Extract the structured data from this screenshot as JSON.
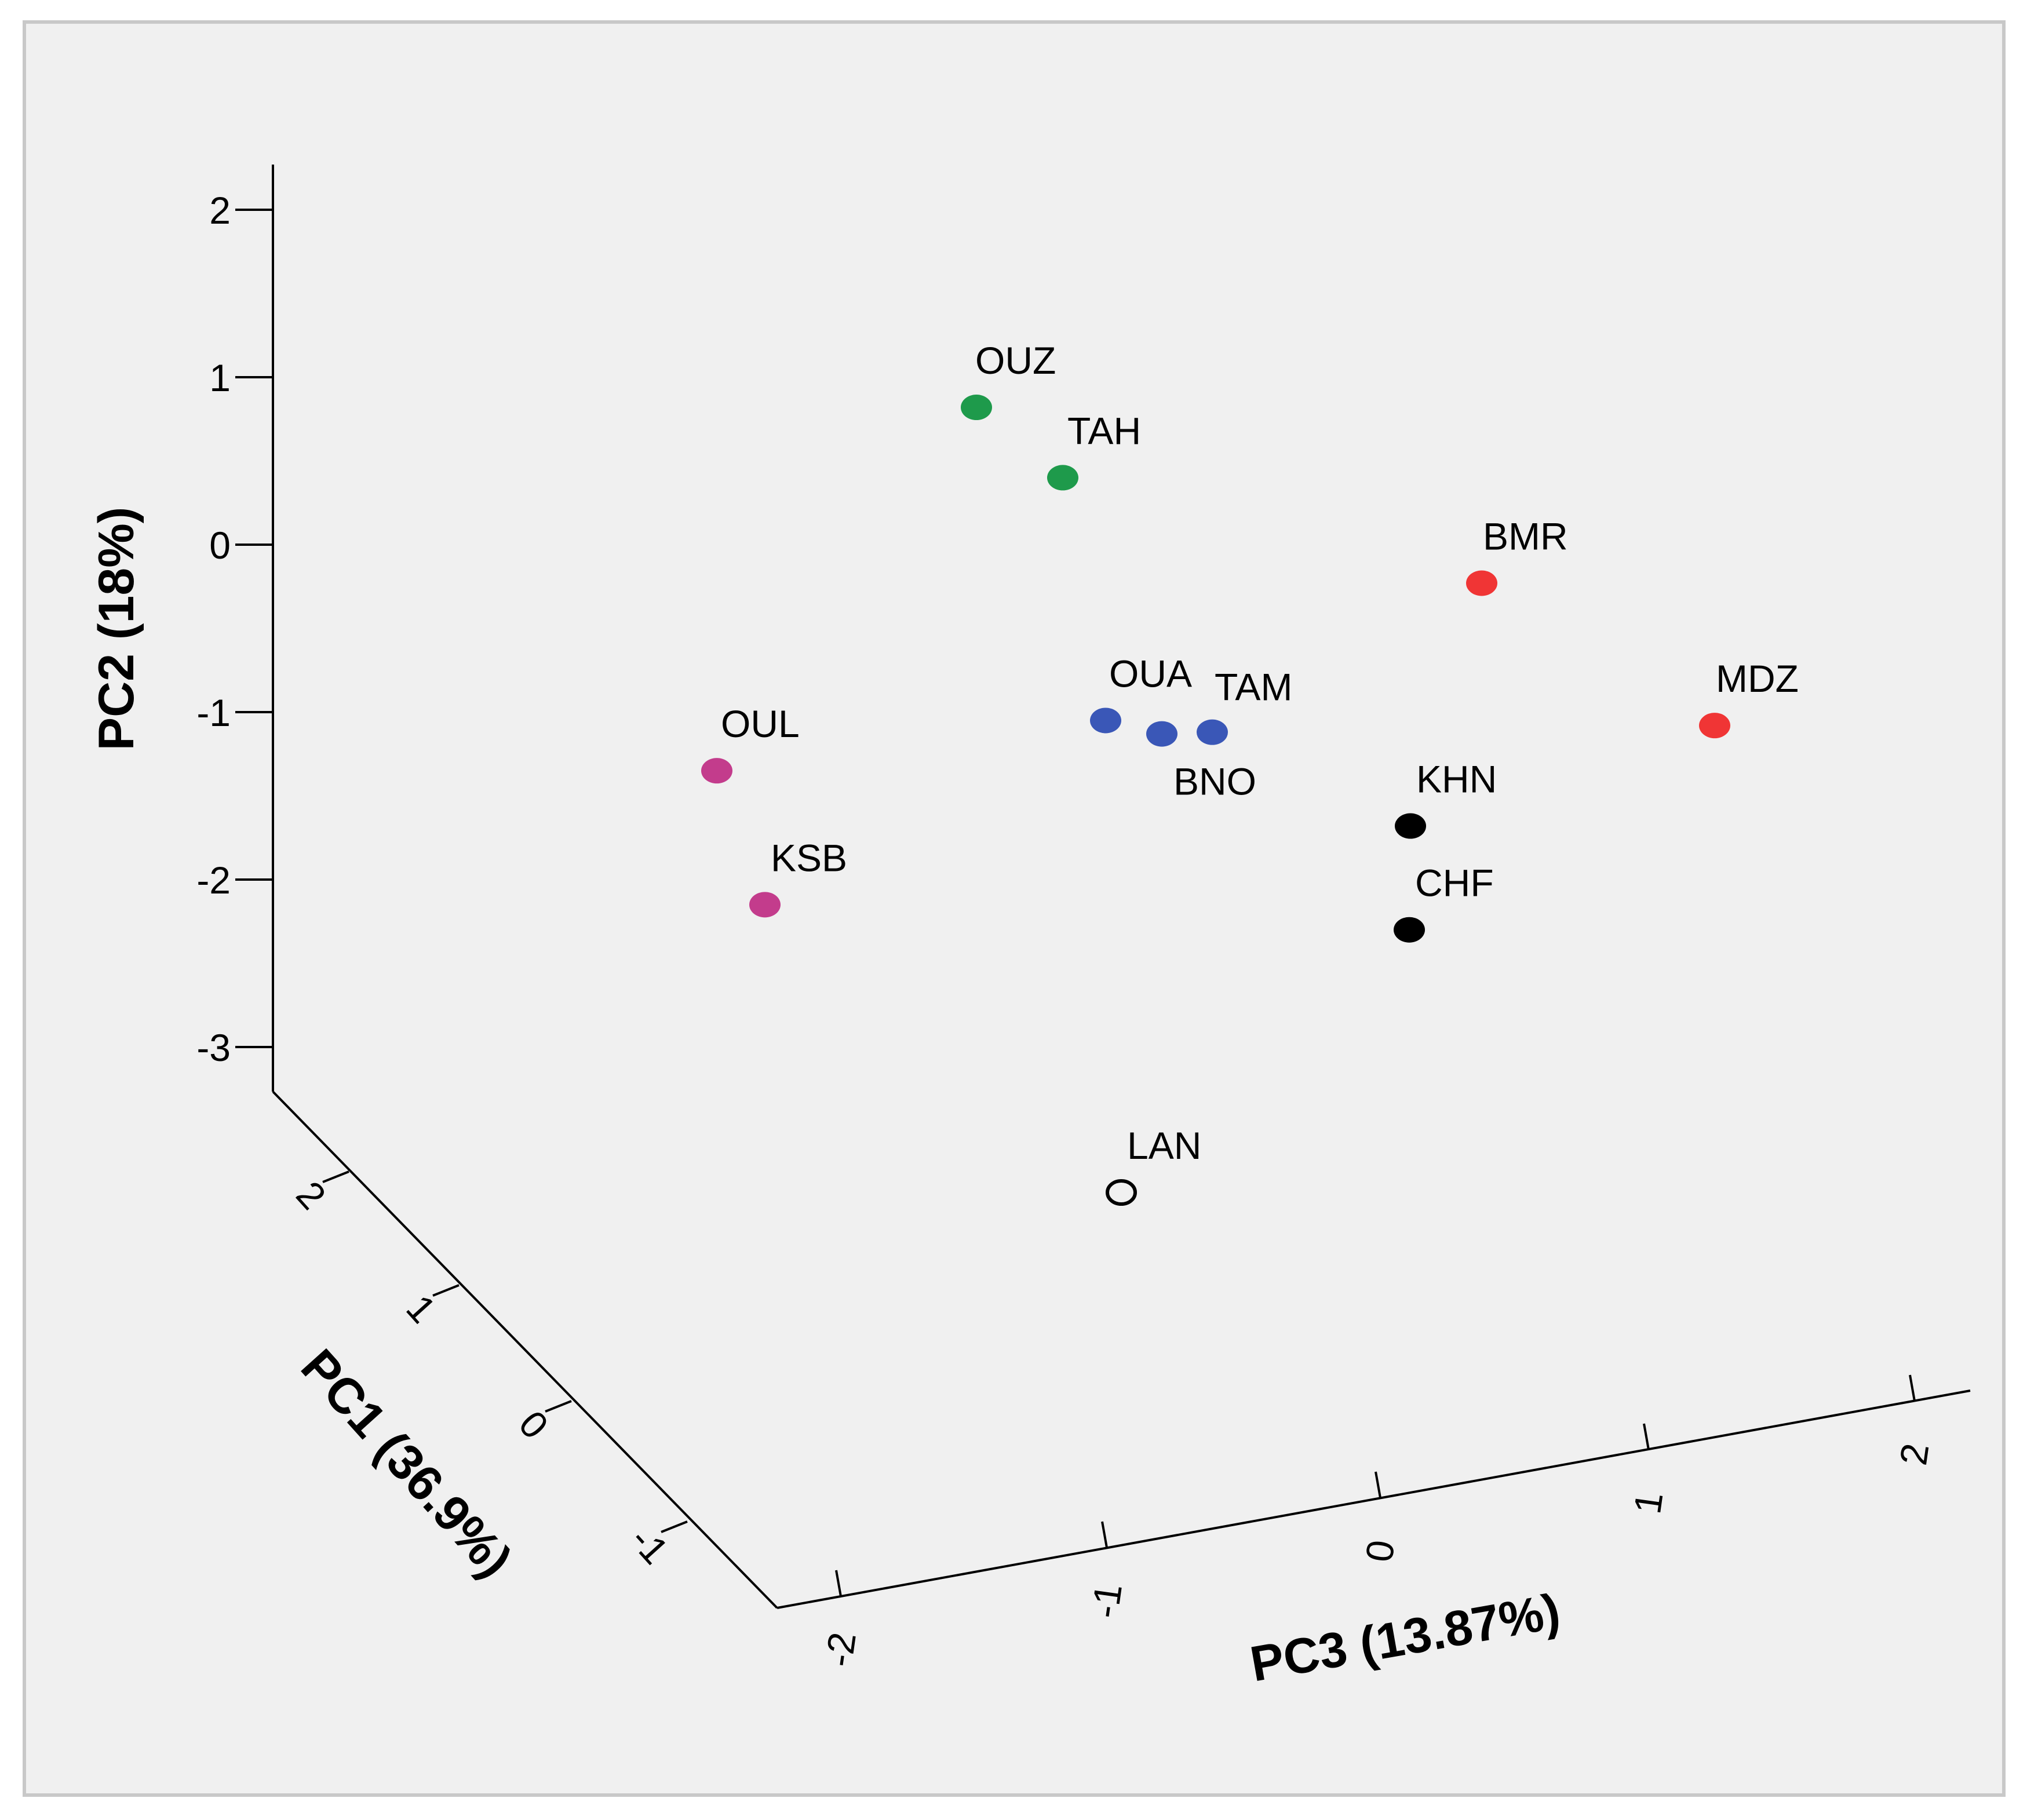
{
  "chart_data": {
    "type": "scatter3d",
    "title": "",
    "axes": {
      "x": {
        "title": "PC1 (36.9%)",
        "ticks": [
          "2",
          "1",
          "0",
          "-1"
        ]
      },
      "y": {
        "title": "PC2 (18%)",
        "range": [
          -3,
          2
        ],
        "ticks": [
          "2",
          "1",
          "0",
          "-1",
          "-2",
          "-3"
        ]
      },
      "z": {
        "title": "PC3 (13.87%)",
        "ticks": [
          "-2",
          "-1",
          "0",
          "1",
          "2"
        ]
      }
    },
    "series": [
      {
        "name": "group-green",
        "color": "#1e9a4b",
        "filled": true,
        "points": [
          {
            "label": "OUZ",
            "pc2": 0.82
          },
          {
            "label": "TAH",
            "pc2": 0.4
          }
        ]
      },
      {
        "name": "group-red",
        "color": "#f03535",
        "filled": true,
        "points": [
          {
            "label": "BMR",
            "pc2": -0.23
          },
          {
            "label": "MDZ",
            "pc2": -1.08
          }
        ]
      },
      {
        "name": "group-blue",
        "color": "#3a57b7",
        "filled": true,
        "points": [
          {
            "label": "OUA",
            "pc2": -1.05
          },
          {
            "label": "BNO",
            "pc2": -1.13
          },
          {
            "label": "TAM",
            "pc2": -1.12
          }
        ]
      },
      {
        "name": "group-magenta",
        "color": "#c33c8c",
        "filled": true,
        "points": [
          {
            "label": "OUL",
            "pc2": -1.35
          },
          {
            "label": "KSB",
            "pc2": -2.15
          }
        ]
      },
      {
        "name": "group-black",
        "color": "#000000",
        "filled": true,
        "points": [
          {
            "label": "KHN",
            "pc2": -1.68
          },
          {
            "label": "CHF",
            "pc2": -2.3
          }
        ]
      },
      {
        "name": "group-open",
        "color": "#000000",
        "filled": false,
        "points": [
          {
            "label": "LAN",
            "pc2": null
          }
        ]
      }
    ]
  }
}
